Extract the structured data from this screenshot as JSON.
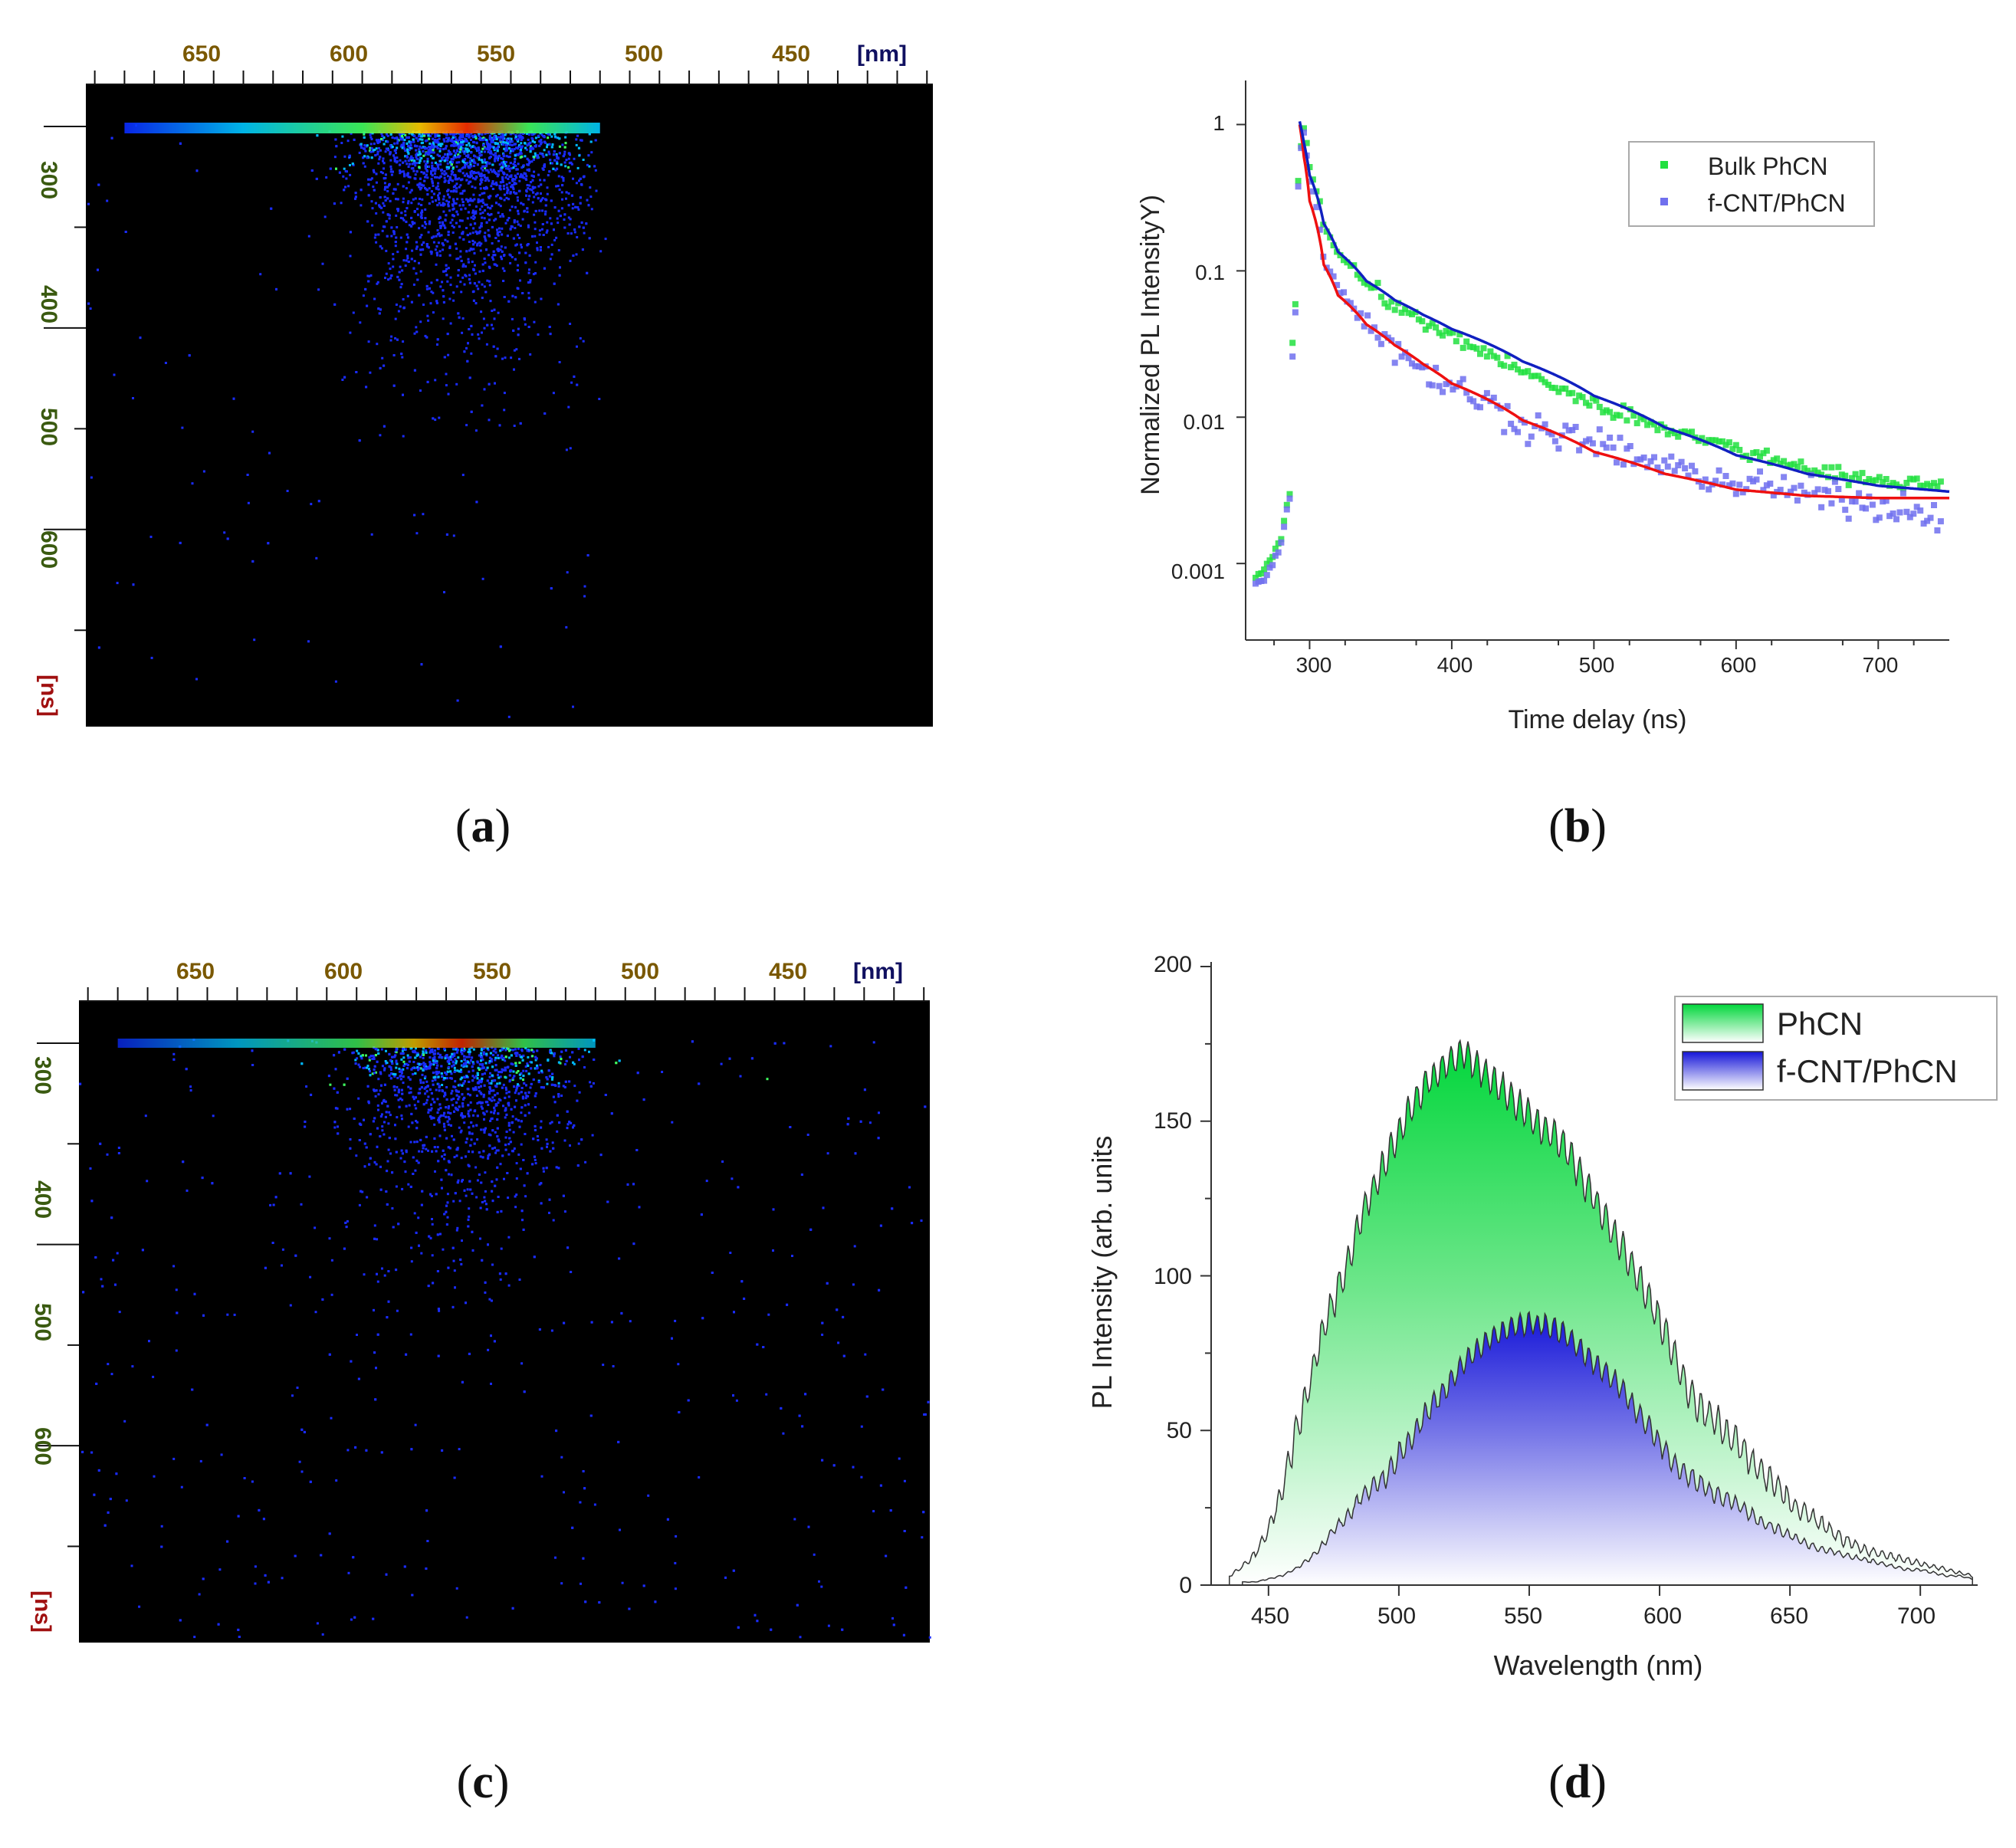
{
  "figure": {
    "panel_labels": [
      "(a)",
      "(b)",
      "(c)",
      "(d)"
    ],
    "panel_letters": [
      "a",
      "b",
      "c",
      "d"
    ]
  },
  "colors": {
    "background": "#000000",
    "bulk_marker": "#22e040",
    "fcnt_marker": "#7070ee",
    "fit_blue": "#1020c0",
    "fit_red": "#ee1010",
    "phcn_fill": "#00dd44",
    "fcnt_fill": "#2020dd"
  },
  "chart_data": [
    {
      "type": "heatmap",
      "panel": "a",
      "x_tick_labels": [
        "650",
        "600",
        "550",
        "500",
        "450"
      ],
      "x_unit_label": "[nm]",
      "y_tick_labels": [
        "300",
        "400",
        "500",
        "600"
      ],
      "y_unit_label": "[ns]",
      "xlim_nm": [
        678,
        393
      ],
      "emission_band_nm": [
        505,
        665
      ],
      "peak_nm": 550,
      "onset_ns": 290
    },
    {
      "type": "scatter",
      "panel": "b",
      "xlabel": "Time delay (ns)",
      "ylabel": "Normalized PL IntensityY)",
      "yscale": "log",
      "xlim": [
        255,
        750
      ],
      "ylim": [
        0.0003,
        2
      ],
      "x_ticks": [
        300,
        400,
        500,
        600,
        700
      ],
      "x_tick_labels": [
        "300",
        "400",
        "500",
        "600",
        "700"
      ],
      "y_ticks": [
        1,
        0.1,
        0.01,
        0.001
      ],
      "y_tick_labels": [
        "1",
        "0.1",
        "0.01",
        "0.001"
      ],
      "legend_position": "top-right",
      "series": [
        {
          "name": "Bulk PhCN",
          "x": [
            262,
            268,
            274,
            280,
            286,
            290,
            293,
            296,
            300,
            310,
            320,
            340,
            360,
            380,
            400,
            450,
            500,
            550,
            600,
            650,
            700,
            745
          ],
          "y": [
            0.0008,
            0.0009,
            0.0011,
            0.0015,
            0.003,
            0.06,
            0.6,
            0.95,
            0.5,
            0.2,
            0.13,
            0.08,
            0.058,
            0.044,
            0.035,
            0.02,
            0.012,
            0.0085,
            0.006,
            0.0045,
            0.0036,
            0.0035
          ]
        },
        {
          "name": "f-CNT/PhCN",
          "x": [
            262,
            268,
            274,
            280,
            286,
            290,
            293,
            296,
            300,
            310,
            320,
            340,
            360,
            380,
            400,
            450,
            500,
            550,
            600,
            650,
            700,
            745
          ],
          "y": [
            0.0007,
            0.0008,
            0.001,
            0.0014,
            0.0028,
            0.05,
            0.55,
            0.9,
            0.4,
            0.12,
            0.075,
            0.045,
            0.03,
            0.021,
            0.016,
            0.009,
            0.0065,
            0.0045,
            0.0035,
            0.003,
            0.0025,
            0.0022
          ]
        }
      ],
      "fits": [
        {
          "name": "Bulk PhCN fit",
          "color": "#1020c0",
          "x": [
            293,
            296,
            300,
            310,
            320,
            340,
            360,
            380,
            400,
            450,
            500,
            550,
            600,
            650,
            700,
            750
          ],
          "y": [
            1.05,
            0.75,
            0.45,
            0.21,
            0.135,
            0.085,
            0.063,
            0.05,
            0.04,
            0.024,
            0.014,
            0.0085,
            0.0055,
            0.0041,
            0.0034,
            0.0031
          ]
        },
        {
          "name": "f-CNT/PhCN fit",
          "color": "#ee1010",
          "x": [
            293,
            296,
            300,
            310,
            320,
            340,
            360,
            380,
            400,
            450,
            500,
            550,
            600,
            650,
            700,
            750
          ],
          "y": [
            1.0,
            0.6,
            0.3,
            0.11,
            0.068,
            0.043,
            0.031,
            0.023,
            0.017,
            0.0095,
            0.0058,
            0.0041,
            0.0032,
            0.0029,
            0.0028,
            0.0028
          ]
        }
      ]
    },
    {
      "type": "heatmap",
      "panel": "c",
      "x_tick_labels": [
        "650",
        "600",
        "550",
        "500",
        "450"
      ],
      "x_unit_label": "[nm]",
      "y_tick_labels": [
        "300",
        "400",
        "500",
        "600"
      ],
      "y_unit_label": "[ns]",
      "xlim_nm": [
        678,
        393
      ],
      "emission_band_nm": [
        505,
        665
      ],
      "peak_nm": 550,
      "onset_ns": 290
    },
    {
      "type": "area",
      "panel": "d",
      "xlabel": "Wavelength (nm)",
      "ylabel": "PL Intensity (arb. units",
      "xlim": [
        428,
        722
      ],
      "ylim": [
        0,
        200
      ],
      "x_ticks": [
        450,
        500,
        550,
        600,
        650,
        700
      ],
      "x_tick_labels": [
        "450",
        "500",
        "550",
        "600",
        "650",
        "700"
      ],
      "y_ticks": [
        0,
        50,
        100,
        150,
        200
      ],
      "y_tick_labels": [
        "0",
        "50",
        "100",
        "150",
        "200"
      ],
      "legend_position": "top-right",
      "series": [
        {
          "name": "PhCN",
          "x": [
            435,
            440,
            445,
            450,
            455,
            460,
            465,
            470,
            475,
            480,
            485,
            490,
            495,
            500,
            505,
            510,
            515,
            520,
            525,
            530,
            535,
            540,
            545,
            550,
            555,
            560,
            565,
            570,
            575,
            580,
            585,
            590,
            595,
            600,
            605,
            610,
            615,
            620,
            625,
            630,
            635,
            640,
            645,
            650,
            655,
            660,
            665,
            670,
            675,
            680,
            685,
            690,
            695,
            700,
            705,
            710,
            715,
            720
          ],
          "y": [
            3,
            6,
            10,
            18,
            30,
            48,
            62,
            80,
            92,
            103,
            118,
            128,
            137,
            146,
            155,
            162,
            166,
            170,
            172,
            168,
            164,
            160,
            156,
            152,
            148,
            145,
            140,
            132,
            125,
            117,
            110,
            102,
            94,
            86,
            76,
            64,
            58,
            54,
            50,
            46,
            40,
            36,
            32,
            27,
            24,
            21,
            18,
            15,
            13,
            11,
            10,
            9,
            8,
            7,
            6,
            5,
            4,
            3
          ]
        },
        {
          "name": "f-CNT/PhCN",
          "x": [
            440,
            445,
            450,
            455,
            460,
            465,
            470,
            475,
            480,
            485,
            490,
            495,
            500,
            505,
            510,
            515,
            520,
            525,
            530,
            535,
            540,
            545,
            550,
            555,
            560,
            565,
            570,
            575,
            580,
            585,
            590,
            595,
            600,
            605,
            610,
            615,
            620,
            625,
            630,
            635,
            640,
            645,
            650,
            655,
            660,
            665,
            670,
            675,
            680,
            685,
            690,
            695,
            700,
            705,
            710,
            715,
            720
          ],
          "y": [
            1,
            1,
            2,
            3,
            5,
            8,
            12,
            18,
            22,
            28,
            32,
            35,
            42,
            48,
            55,
            60,
            66,
            72,
            76,
            80,
            82,
            84,
            85,
            84,
            83,
            80,
            76,
            72,
            68,
            64,
            58,
            52,
            46,
            40,
            36,
            33,
            30,
            28,
            26,
            23,
            20,
            18,
            16,
            14,
            12,
            11,
            10,
            9,
            8,
            7,
            6,
            5,
            5,
            4,
            3,
            3,
            2
          ]
        }
      ]
    }
  ]
}
